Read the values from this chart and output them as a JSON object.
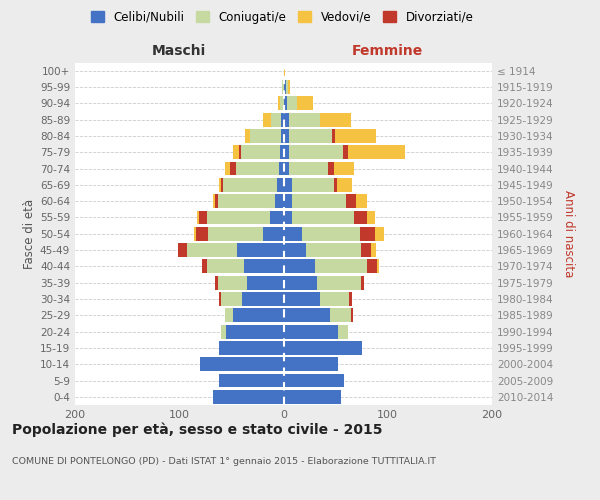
{
  "age_groups": [
    "0-4",
    "5-9",
    "10-14",
    "15-19",
    "20-24",
    "25-29",
    "30-34",
    "35-39",
    "40-44",
    "45-49",
    "50-54",
    "55-59",
    "60-64",
    "65-69",
    "70-74",
    "75-79",
    "80-84",
    "85-89",
    "90-94",
    "95-99",
    "100+"
  ],
  "birth_years": [
    "2010-2014",
    "2005-2009",
    "2000-2004",
    "1995-1999",
    "1990-1994",
    "1985-1989",
    "1980-1984",
    "1975-1979",
    "1970-1974",
    "1965-1969",
    "1960-1964",
    "1955-1959",
    "1950-1954",
    "1945-1949",
    "1940-1944",
    "1935-1939",
    "1930-1934",
    "1925-1929",
    "1920-1924",
    "1915-1919",
    "≤ 1914"
  ],
  "males": {
    "celibe": [
      68,
      62,
      80,
      62,
      55,
      48,
      40,
      35,
      38,
      45,
      20,
      13,
      8,
      6,
      4,
      3,
      2,
      2,
      0,
      0,
      0
    ],
    "coniugato": [
      0,
      0,
      0,
      0,
      5,
      8,
      20,
      28,
      35,
      48,
      52,
      60,
      55,
      52,
      42,
      38,
      30,
      10,
      3,
      1,
      0
    ],
    "vedovo": [
      0,
      0,
      0,
      0,
      0,
      0,
      0,
      0,
      0,
      0,
      2,
      2,
      2,
      2,
      5,
      5,
      5,
      8,
      2,
      0,
      0
    ],
    "divorziato": [
      0,
      0,
      0,
      0,
      0,
      0,
      2,
      3,
      5,
      8,
      12,
      8,
      3,
      2,
      5,
      2,
      0,
      0,
      0,
      0,
      0
    ]
  },
  "females": {
    "nubile": [
      55,
      58,
      52,
      75,
      52,
      45,
      35,
      32,
      30,
      22,
      18,
      8,
      8,
      8,
      5,
      5,
      5,
      5,
      3,
      2,
      0
    ],
    "coniugata": [
      0,
      0,
      0,
      0,
      10,
      20,
      28,
      42,
      50,
      52,
      55,
      60,
      52,
      40,
      38,
      52,
      42,
      30,
      10,
      2,
      0
    ],
    "vedova": [
      0,
      0,
      0,
      0,
      0,
      0,
      0,
      0,
      2,
      5,
      8,
      8,
      10,
      15,
      20,
      55,
      40,
      30,
      15,
      2,
      1
    ],
    "divorziata": [
      0,
      0,
      0,
      0,
      0,
      2,
      3,
      3,
      10,
      10,
      15,
      12,
      10,
      3,
      5,
      5,
      2,
      0,
      0,
      0,
      0
    ]
  },
  "colors": {
    "celibe": "#4472C4",
    "coniugato": "#C5D9A0",
    "vedovo": "#F5C242",
    "divorziato": "#C0392B"
  },
  "legend_labels": [
    "Celibi/Nubili",
    "Coniugati/e",
    "Vedovi/e",
    "Divorziati/e"
  ],
  "title": "Popolazione per età, sesso e stato civile - 2015",
  "subtitle": "COMUNE DI PONTELONGO (PD) - Dati ISTAT 1° gennaio 2015 - Elaborazione TUTTITALIA.IT",
  "label_maschi": "Maschi",
  "label_femmine": "Femmine",
  "ylabel_left": "Fasce di età",
  "ylabel_right": "Anni di nascita",
  "xlim": 200,
  "bg_color": "#ececec",
  "plot_bg_color": "#ffffff"
}
